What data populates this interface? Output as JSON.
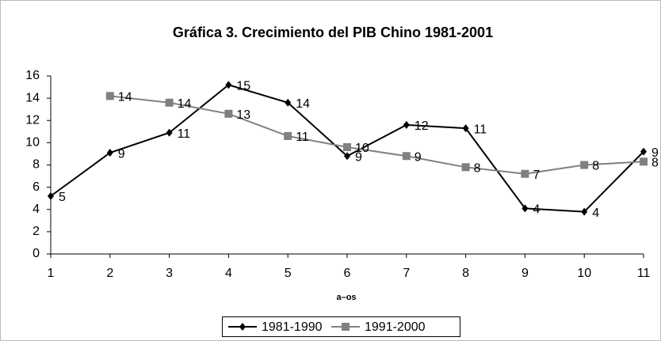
{
  "chart_data": {
    "type": "line",
    "title": "Gráfica 3. Crecimiento del PIB Chino 1981-2001",
    "x_label": "a–os",
    "x": [
      1,
      2,
      3,
      4,
      5,
      6,
      7,
      8,
      9,
      10,
      11
    ],
    "xlim": [
      1,
      11
    ],
    "xticks": [
      1,
      2,
      3,
      4,
      5,
      6,
      7,
      8,
      9,
      10,
      11
    ],
    "ylim": [
      0,
      16
    ],
    "yticks": [
      0,
      2,
      4,
      6,
      8,
      10,
      12,
      14,
      16
    ],
    "legend": "bottom",
    "series": [
      {
        "name": "1981-1990",
        "color": "#000000",
        "marker": "diamond",
        "values": [
          5.2,
          9.1,
          10.9,
          15.2,
          13.6,
          8.8,
          11.6,
          11.3,
          4.1,
          3.8,
          9.2
        ],
        "value_labels": [
          "5",
          "9",
          "11",
          "15",
          "14",
          "9",
          "12",
          "11",
          "4",
          "4",
          "9"
        ]
      },
      {
        "name": "1991-2000",
        "color": "#808080",
        "marker": "square",
        "values": [
          null,
          14.2,
          13.6,
          12.6,
          10.6,
          9.6,
          8.8,
          7.8,
          7.2,
          8.0,
          8.3
        ],
        "value_labels": [
          null,
          "14",
          "14",
          "13",
          "11",
          "10",
          "9",
          "8",
          "7",
          "8",
          "8"
        ]
      }
    ]
  }
}
